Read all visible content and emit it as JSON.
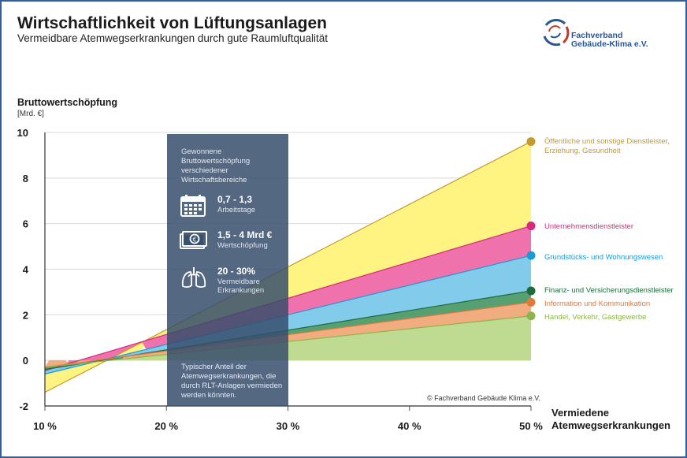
{
  "header": {
    "title": "Wirtschaftlichkeit von Lüftungsanlagen",
    "subtitle": "Vermeidbare Atemwegserkrankungen durch gute Raumluftqualität"
  },
  "logo": {
    "line1": "Fachverband",
    "line2": "Gebäude-Klima e.V."
  },
  "copyright": "© Fachverband Gebäude Klima e.V.",
  "infobox": {
    "intro": "Gewonnene Bruttowertschöpfung verschiedener Wirtschaftsbereiche",
    "items": [
      {
        "value": "0,7 - 1,3",
        "label": "Arbeitstage",
        "icon": "calendar-icon"
      },
      {
        "value": "1,5 - 4 Mrd €",
        "label": "Wertschöpfung",
        "icon": "money-icon"
      },
      {
        "value": "20 - 30%",
        "label": "Vermeidbare Erkrankungen",
        "icon": "lungs-icon"
      }
    ],
    "bottom": "Typischer Anteil der Atemwegserkrankungen, die durch RLT-Anlagen vermieden werden könnten."
  },
  "chart_data": {
    "type": "area",
    "ylabel": "Bruttowertschöpfung",
    "yunit": "[Mrd. €]",
    "xlabel_line1": "Vermiedene",
    "xlabel_line2": "Atemwegserkrankungen",
    "x": [
      10,
      20,
      30,
      40,
      50
    ],
    "x_tick_labels": [
      "10 %",
      "20 %",
      "30 %",
      "40 %",
      "50 %"
    ],
    "y_ticks": [
      10,
      8,
      6,
      4,
      2,
      0,
      -2
    ],
    "xlim": [
      10,
      50
    ],
    "ylim": [
      -2,
      10
    ],
    "grid": "horizontal",
    "highlight_range": [
      20,
      30
    ],
    "series": [
      {
        "name": "Öffentliche und sonstige Dienstleister, Erziehung, Gesundheit",
        "start": -1.4,
        "end": 9.6,
        "color": "#c49a2a",
        "fill": "#fff27a"
      },
      {
        "name": "Unternehmensdienstleister",
        "start": -0.45,
        "end": 5.9,
        "color": "#d6297f",
        "fill": "#ee6aa9"
      },
      {
        "name": "Grundstücks- und Wohnungswesen",
        "start": -0.6,
        "end": 4.6,
        "color": "#1a9ad6",
        "fill": "#7cc8ea"
      },
      {
        "name": "Finanz- und Versicherungsdienstleister",
        "start": -0.4,
        "end": 3.05,
        "color": "#1e6b3c",
        "fill": "#4e9b6a"
      },
      {
        "name": "Information und Kommunikation",
        "start": -0.3,
        "end": 2.55,
        "color": "#e07a3a",
        "fill": "#f0a878"
      },
      {
        "name": "Handel, Verkehr, Gastgewerbe",
        "start": -0.3,
        "end": 1.95,
        "color": "#8bb54a",
        "fill": "#bcd98c"
      }
    ]
  }
}
